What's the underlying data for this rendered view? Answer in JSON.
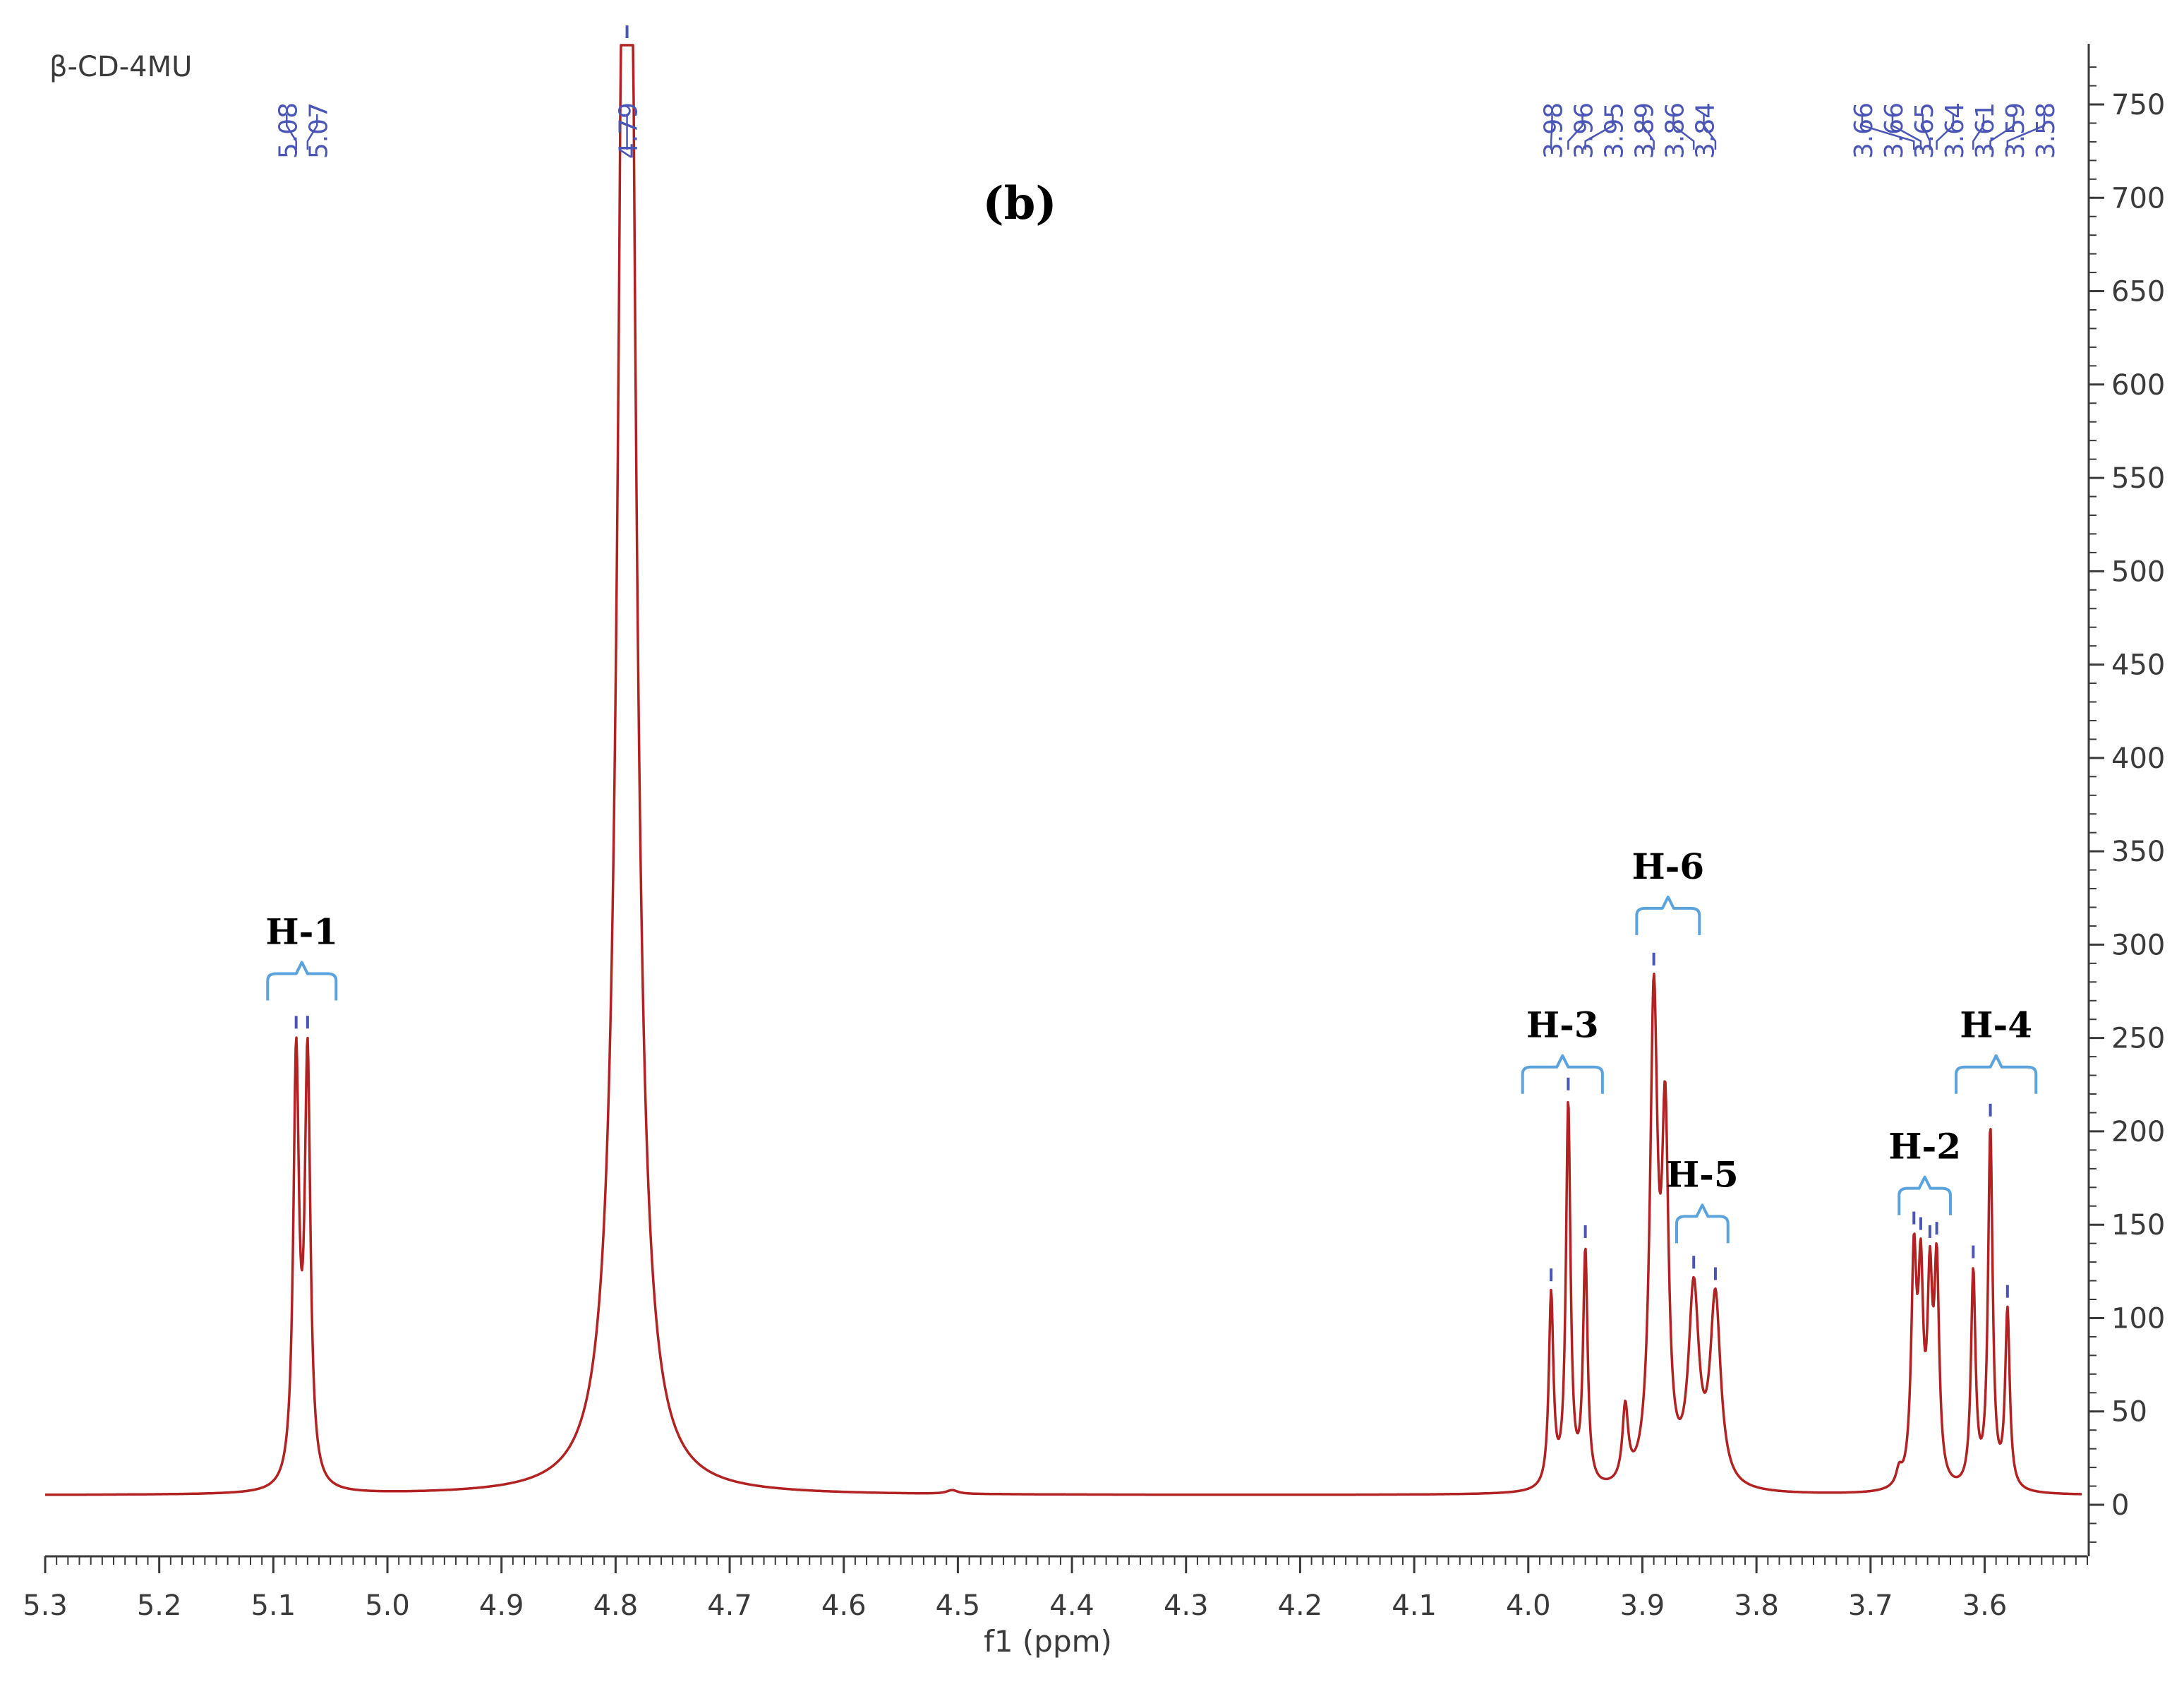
{
  "colors": {
    "spectrum": "#b22222",
    "peak_label": "#4a55b5",
    "bracket": "#5ba3dc",
    "axis": "#3a3a3a",
    "annotation": "#000000"
  },
  "chart_data": {
    "type": "line",
    "sample_label": "β-CD-4MU",
    "panel_label": "(b)",
    "xlabel": "f1 (ppm)",
    "ylabel": "",
    "xlim": [
      5.3,
      3.51
    ],
    "x_reversed": true,
    "ylim": [
      -25,
      780
    ],
    "x_ticks": [
      "5.3",
      "5.2",
      "5.1",
      "5.0",
      "4.9",
      "4.8",
      "4.7",
      "4.6",
      "4.5",
      "4.4",
      "4.3",
      "4.2",
      "4.1",
      "4.0",
      "3.9",
      "3.8",
      "3.7",
      "3.6"
    ],
    "y_ticks": [
      "0",
      "50",
      "100",
      "150",
      "200",
      "250",
      "300",
      "350",
      "400",
      "450",
      "500",
      "550",
      "600",
      "650",
      "700",
      "750"
    ],
    "baseline": 5,
    "series": [
      {
        "peaks": [
          {
            "x": 5.08,
            "y": 226,
            "w": 0.003
          },
          {
            "x": 5.07,
            "y": 226,
            "w": 0.003
          },
          {
            "x": 4.79,
            "y": 1200,
            "w": 0.0075
          },
          {
            "x": 4.505,
            "y": 2,
            "w": 0.006
          },
          {
            "x": 3.98,
            "y": 103,
            "w": 0.0024
          },
          {
            "x": 3.965,
            "y": 205,
            "w": 0.0024
          },
          {
            "x": 3.95,
            "y": 125,
            "w": 0.0024
          },
          {
            "x": 3.915,
            "y": 40,
            "w": 0.003
          },
          {
            "x": 3.89,
            "y": 255,
            "w": 0.004
          },
          {
            "x": 3.88,
            "y": 180,
            "w": 0.0035
          },
          {
            "x": 3.855,
            "y": 102,
            "w": 0.0055
          },
          {
            "x": 3.836,
            "y": 100,
            "w": 0.0055
          },
          {
            "x": 3.662,
            "y": 118,
            "w": 0.0028
          },
          {
            "x": 3.656,
            "y": 102,
            "w": 0.0026
          },
          {
            "x": 3.648,
            "y": 100,
            "w": 0.0026
          },
          {
            "x": 3.642,
            "y": 112,
            "w": 0.0026
          },
          {
            "x": 3.675,
            "y": 8,
            "w": 0.003
          },
          {
            "x": 3.61,
            "y": 115,
            "w": 0.0024
          },
          {
            "x": 3.595,
            "y": 192,
            "w": 0.0024
          },
          {
            "x": 3.58,
            "y": 95,
            "w": 0.0024
          }
        ]
      }
    ],
    "peak_labels": [
      {
        "text": "5.08",
        "x": 5.08
      },
      {
        "text": "5.07",
        "x": 5.07
      },
      {
        "text": "4.79",
        "x": 4.79
      },
      {
        "text": "3.98",
        "x": 3.98
      },
      {
        "text": "3.96",
        "x": 3.965
      },
      {
        "text": "3.95",
        "x": 3.95
      },
      {
        "text": "3.89",
        "x": 3.89
      },
      {
        "text": "3.86",
        "x": 3.855
      },
      {
        "text": "3.84",
        "x": 3.836
      },
      {
        "text": "3.66",
        "x": 3.662
      },
      {
        "text": "3.66",
        "x": 3.656
      },
      {
        "text": "3.65",
        "x": 3.648
      },
      {
        "text": "3.64",
        "x": 3.642
      },
      {
        "text": "3.61",
        "x": 3.61
      },
      {
        "text": "3.59",
        "x": 3.595
      },
      {
        "text": "3.58",
        "x": 3.58
      }
    ],
    "annotations": [
      {
        "text": "H-1",
        "x_from": 5.105,
        "x_to": 5.045,
        "y": 255
      },
      {
        "text": "H-3",
        "x_from": 4.005,
        "x_to": 3.935,
        "y": 205
      },
      {
        "text": "H-6",
        "x_from": 3.905,
        "x_to": 3.85,
        "y": 290
      },
      {
        "text": "H-5",
        "x_from": 3.87,
        "x_to": 3.825,
        "y": 125
      },
      {
        "text": "H-2",
        "x_from": 3.675,
        "x_to": 3.63,
        "y": 140
      },
      {
        "text": "H-4",
        "x_from": 3.625,
        "x_to": 3.555,
        "y": 205
      }
    ]
  }
}
